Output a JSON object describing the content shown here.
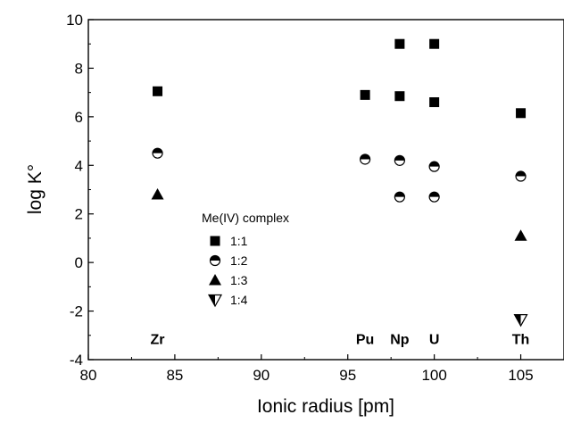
{
  "chart_data": {
    "type": "scatter",
    "title": "",
    "xlabel": "Ionic radius [pm]",
    "ylabel": "log K°",
    "xlim": [
      80,
      107.5
    ],
    "ylim": [
      -4,
      10
    ],
    "xticks": [
      80,
      85,
      90,
      95,
      100,
      105
    ],
    "yticks": [
      -4,
      -2,
      0,
      2,
      4,
      6,
      8,
      10
    ],
    "grid": false,
    "legend": {
      "title": "Me(IV) complex",
      "placement": "center"
    },
    "series": [
      {
        "name": "1:1",
        "marker": "filled-square",
        "points": [
          [
            84,
            7.05
          ],
          [
            96,
            6.9
          ],
          [
            98,
            9.0
          ],
          [
            98,
            6.85
          ],
          [
            100,
            9.0
          ],
          [
            100,
            6.6
          ],
          [
            105,
            6.15
          ]
        ]
      },
      {
        "name": "1:2",
        "marker": "half-filled-circle",
        "points": [
          [
            84,
            4.5
          ],
          [
            96,
            4.25
          ],
          [
            98,
            4.2
          ],
          [
            98,
            2.7
          ],
          [
            100,
            3.95
          ],
          [
            100,
            2.7
          ],
          [
            105,
            3.55
          ]
        ]
      },
      {
        "name": "1:3",
        "marker": "filled-up-triangle",
        "points": [
          [
            84,
            2.8
          ],
          [
            105,
            1.1
          ]
        ]
      },
      {
        "name": "1:4",
        "marker": "half-filled-down-triangle",
        "points": [
          [
            105,
            -2.35
          ]
        ]
      }
    ],
    "element_labels": [
      {
        "text": "Zr",
        "x": 84
      },
      {
        "text": "Pu",
        "x": 96
      },
      {
        "text": "Np",
        "x": 98
      },
      {
        "text": "U",
        "x": 100
      },
      {
        "text": "Th",
        "x": 105
      }
    ],
    "element_label_y": -3.35
  }
}
